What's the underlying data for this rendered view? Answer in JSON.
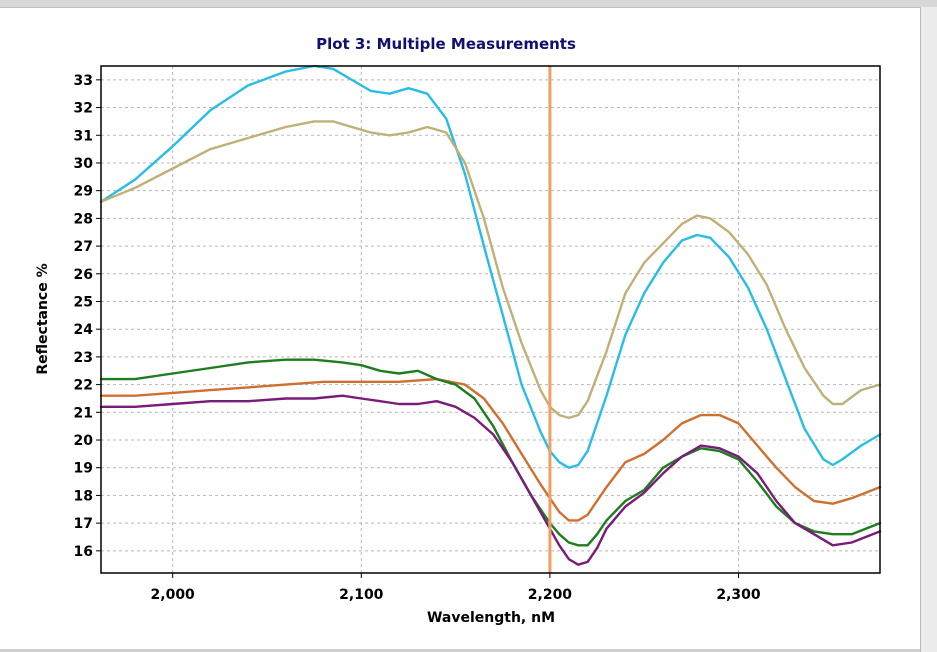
{
  "chart_data": {
    "type": "line",
    "title": "Plot 3: Multiple Measurements",
    "xlabel": "Wavelength, nM",
    "ylabel": "Reflectance %",
    "xlim": [
      1962,
      2375
    ],
    "ylim": [
      15.2,
      33.5
    ],
    "xticks": [
      2000,
      2100,
      2200,
      2300
    ],
    "xtick_labels": [
      "2,000",
      "2,100",
      "2,200",
      "2,300"
    ],
    "yticks": [
      16,
      17,
      18,
      19,
      20,
      21,
      22,
      23,
      24,
      25,
      26,
      27,
      28,
      29,
      30,
      31,
      32,
      33
    ],
    "grid": true,
    "legend": "none",
    "cursor_line": {
      "x": 2200,
      "color": "#f0a060"
    },
    "series": [
      {
        "color": "#29bde6",
        "x": [
          1962,
          1980,
          2000,
          2020,
          2040,
          2060,
          2075,
          2085,
          2095,
          2105,
          2115,
          2125,
          2135,
          2145,
          2155,
          2165,
          2175,
          2185,
          2195,
          2200,
          2205,
          2210,
          2215,
          2220,
          2230,
          2240,
          2250,
          2260,
          2270,
          2278,
          2285,
          2295,
          2305,
          2315,
          2325,
          2335,
          2345,
          2350,
          2355,
          2365,
          2375
        ],
        "y": [
          28.6,
          29.4,
          30.6,
          31.9,
          32.8,
          33.3,
          33.5,
          33.4,
          33.0,
          32.6,
          32.5,
          32.7,
          32.5,
          31.6,
          29.6,
          27.0,
          24.5,
          22.0,
          20.3,
          19.6,
          19.2,
          19.0,
          19.1,
          19.6,
          21.6,
          23.8,
          25.3,
          26.4,
          27.2,
          27.4,
          27.3,
          26.6,
          25.5,
          24.0,
          22.2,
          20.4,
          19.3,
          19.1,
          19.3,
          19.8,
          20.2
        ]
      },
      {
        "color": "#c0b078",
        "x": [
          1962,
          1980,
          2000,
          2020,
          2040,
          2060,
          2075,
          2085,
          2095,
          2105,
          2115,
          2125,
          2135,
          2145,
          2155,
          2165,
          2175,
          2185,
          2195,
          2200,
          2205,
          2210,
          2215,
          2220,
          2230,
          2240,
          2250,
          2260,
          2270,
          2278,
          2285,
          2295,
          2305,
          2315,
          2325,
          2335,
          2345,
          2350,
          2355,
          2365,
          2375
        ],
        "y": [
          28.6,
          29.1,
          29.8,
          30.5,
          30.9,
          31.3,
          31.5,
          31.5,
          31.3,
          31.1,
          31.0,
          31.1,
          31.3,
          31.1,
          30.0,
          28.0,
          25.5,
          23.5,
          21.8,
          21.2,
          20.9,
          20.8,
          20.9,
          21.4,
          23.2,
          25.3,
          26.4,
          27.1,
          27.8,
          28.1,
          28.0,
          27.5,
          26.7,
          25.6,
          24.0,
          22.6,
          21.6,
          21.3,
          21.3,
          21.8,
          22.0
        ]
      },
      {
        "color": "#d07030",
        "x": [
          1962,
          1980,
          2000,
          2020,
          2040,
          2060,
          2080,
          2100,
          2120,
          2140,
          2155,
          2165,
          2175,
          2185,
          2195,
          2200,
          2205,
          2210,
          2215,
          2220,
          2230,
          2240,
          2250,
          2260,
          2270,
          2280,
          2290,
          2300,
          2310,
          2320,
          2330,
          2340,
          2350,
          2360,
          2375
        ],
        "y": [
          21.6,
          21.6,
          21.7,
          21.8,
          21.9,
          22.0,
          22.1,
          22.1,
          22.1,
          22.2,
          22.0,
          21.5,
          20.6,
          19.5,
          18.4,
          17.9,
          17.4,
          17.1,
          17.1,
          17.3,
          18.3,
          19.2,
          19.5,
          20.0,
          20.6,
          20.9,
          20.9,
          20.6,
          19.8,
          19.0,
          18.3,
          17.8,
          17.7,
          17.9,
          18.3
        ]
      },
      {
        "color": "#1e7d1e",
        "x": [
          1962,
          1980,
          2000,
          2020,
          2040,
          2060,
          2075,
          2090,
          2100,
          2110,
          2120,
          2130,
          2140,
          2150,
          2160,
          2170,
          2180,
          2190,
          2200,
          2205,
          2210,
          2215,
          2220,
          2225,
          2230,
          2240,
          2250,
          2260,
          2270,
          2280,
          2290,
          2300,
          2310,
          2320,
          2330,
          2340,
          2350,
          2360,
          2375
        ],
        "y": [
          22.2,
          22.2,
          22.4,
          22.6,
          22.8,
          22.9,
          22.9,
          22.8,
          22.7,
          22.5,
          22.4,
          22.5,
          22.2,
          22.0,
          21.5,
          20.5,
          19.2,
          18.0,
          17.0,
          16.6,
          16.3,
          16.2,
          16.2,
          16.6,
          17.1,
          17.8,
          18.2,
          19.0,
          19.4,
          19.7,
          19.6,
          19.3,
          18.5,
          17.6,
          17.0,
          16.7,
          16.6,
          16.6,
          17.0
        ]
      },
      {
        "color": "#7a1a7a",
        "x": [
          1962,
          1980,
          2000,
          2020,
          2040,
          2060,
          2075,
          2090,
          2100,
          2110,
          2120,
          2130,
          2140,
          2150,
          2160,
          2170,
          2180,
          2190,
          2200,
          2205,
          2210,
          2215,
          2220,
          2225,
          2230,
          2240,
          2250,
          2260,
          2270,
          2280,
          2290,
          2300,
          2310,
          2320,
          2330,
          2340,
          2350,
          2360,
          2375
        ],
        "y": [
          21.2,
          21.2,
          21.3,
          21.4,
          21.4,
          21.5,
          21.5,
          21.6,
          21.5,
          21.4,
          21.3,
          21.3,
          21.4,
          21.2,
          20.8,
          20.2,
          19.2,
          18.0,
          16.8,
          16.2,
          15.7,
          15.5,
          15.6,
          16.1,
          16.8,
          17.6,
          18.1,
          18.8,
          19.4,
          19.8,
          19.7,
          19.4,
          18.8,
          17.8,
          17.0,
          16.6,
          16.2,
          16.3,
          16.7
        ]
      }
    ]
  }
}
